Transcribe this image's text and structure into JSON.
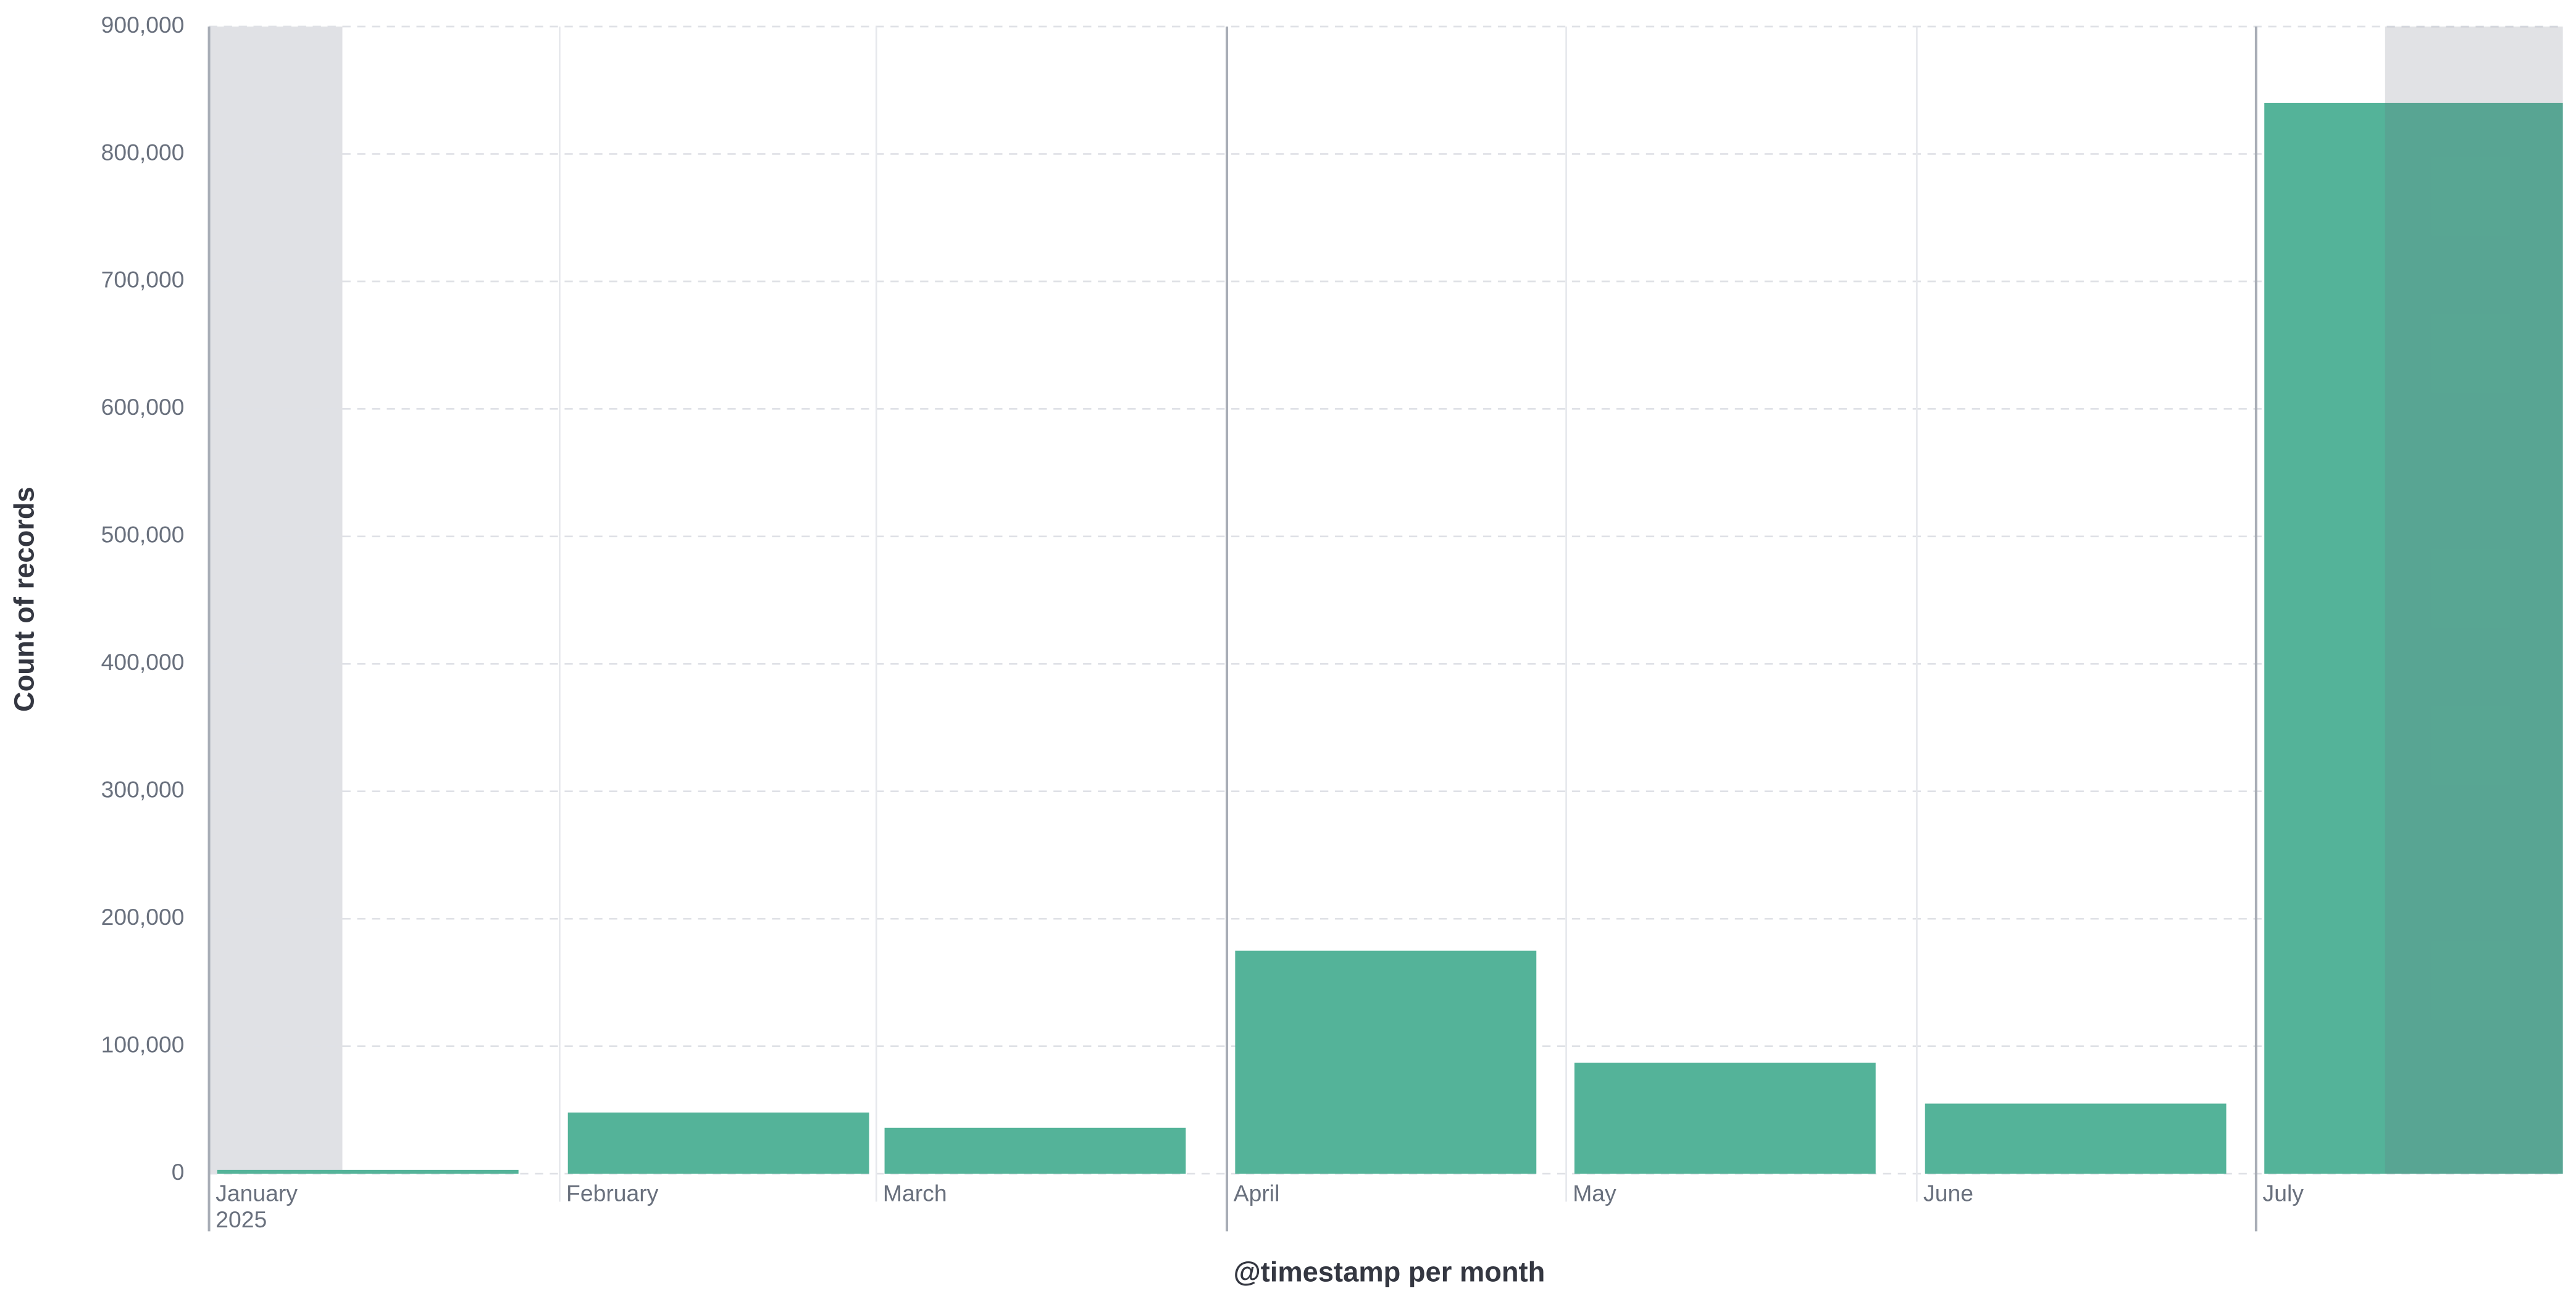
{
  "chart_data": {
    "type": "bar",
    "x_label": "@timestamp per month",
    "y_label": "Count of records",
    "year": "2025",
    "categories": [
      "January",
      "February",
      "March",
      "April",
      "May",
      "June",
      "July"
    ],
    "values": [
      3000,
      48000,
      36000,
      175000,
      87000,
      55000,
      840000
    ],
    "color": "#54b399",
    "ylim": [
      0,
      900000
    ],
    "yticks": [
      0,
      {
        "value": 100000,
        "label": "100,000"
      },
      {
        "value": 200000,
        "label": "200,000"
      },
      {
        "value": 300000,
        "label": "300,000"
      },
      {
        "value": 400000,
        "label": "400,000"
      },
      {
        "value": 500000,
        "label": "500,000"
      },
      {
        "value": 600000,
        "label": "600,000"
      },
      {
        "value": 700000,
        "label": "700,000"
      },
      {
        "value": 800000,
        "label": "800,000"
      },
      {
        "value": 900000,
        "label": "900,000"
      }
    ],
    "grid": true
  }
}
